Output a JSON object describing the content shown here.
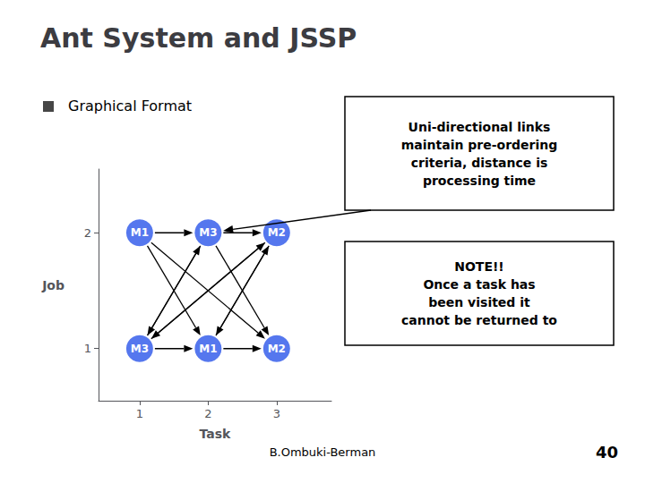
{
  "chart_data": {
    "type": "graph",
    "title": "Ant System and JSSP",
    "subtitle": "Graphical Format",
    "xlabel": "Task",
    "ylabel": "Job",
    "nodes": [
      {
        "x": 1,
        "y": 2,
        "label": "M1"
      },
      {
        "x": 2,
        "y": 2,
        "label": "M3"
      },
      {
        "x": 3,
        "y": 2,
        "label": "M2"
      },
      {
        "x": 1,
        "y": 1,
        "label": "M3"
      },
      {
        "x": 2,
        "y": 1,
        "label": "M1"
      },
      {
        "x": 3,
        "y": 1,
        "label": "M2"
      }
    ],
    "edges": [
      [
        [
          1,
          2
        ],
        [
          2,
          2
        ]
      ],
      [
        [
          2,
          2
        ],
        [
          3,
          2
        ]
      ],
      [
        [
          1,
          2
        ],
        [
          2,
          1
        ]
      ],
      [
        [
          1,
          2
        ],
        [
          3,
          1
        ]
      ],
      [
        [
          2,
          2
        ],
        [
          1,
          1
        ]
      ],
      [
        [
          2,
          2
        ],
        [
          3,
          1
        ]
      ],
      [
        [
          3,
          2
        ],
        [
          1,
          1
        ]
      ],
      [
        [
          3,
          2
        ],
        [
          2,
          1
        ]
      ],
      [
        [
          1,
          1
        ],
        [
          2,
          1
        ]
      ],
      [
        [
          2,
          1
        ],
        [
          3,
          1
        ]
      ],
      [
        [
          1,
          1
        ],
        [
          2,
          2
        ]
      ],
      [
        [
          1,
          1
        ],
        [
          3,
          2
        ]
      ],
      [
        [
          2,
          1
        ],
        [
          3,
          2
        ]
      ]
    ],
    "color": "#5577ee",
    "xlim": [
      0.4,
      3.8
    ],
    "ylim": [
      0.55,
      2.55
    ],
    "xticks": [
      1,
      2,
      3
    ],
    "yticks": [
      1,
      2
    ],
    "grid": false,
    "annotations": [
      {
        "text": "Uni-directional links\nmaintain pre-ordering\ncriteria, distance is\nprocessing time",
        "target": [
          2,
          2
        ]
      },
      {
        "text": "NOTE!!\nOnce a task has\nbeen visited it\ncannot be returned to"
      }
    ],
    "footer": "B.Ombuki-Berman",
    "page": "40"
  }
}
